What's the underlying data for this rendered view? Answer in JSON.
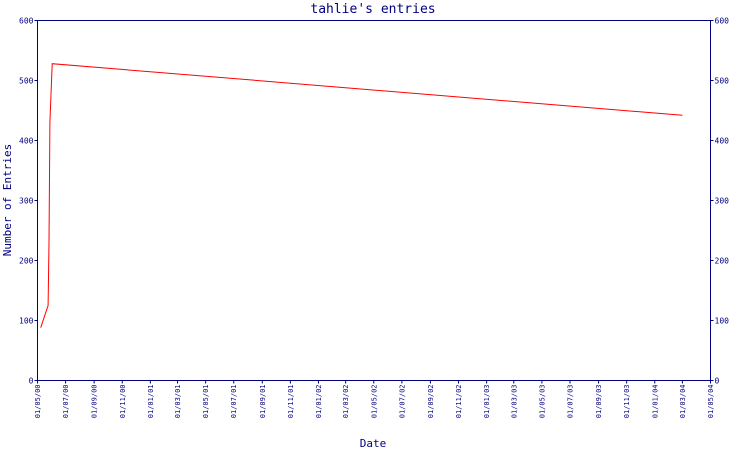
{
  "chart_data": {
    "type": "line",
    "title": "tahlie's entries",
    "xlabel": "Date",
    "ylabel": "Number of Entries",
    "ylim": [
      0,
      600
    ],
    "y_ticks": [
      "0",
      "100",
      "200",
      "300",
      "400",
      "500",
      "600"
    ],
    "x_ticks": [
      "01/05/00",
      "01/07/00",
      "01/09/00",
      "01/11/00",
      "01/01/01",
      "01/03/01",
      "01/05/01",
      "01/07/01",
      "01/09/01",
      "01/11/01",
      "01/01/02",
      "01/03/02",
      "01/05/02",
      "01/07/02",
      "01/09/02",
      "01/11/02",
      "01/01/03",
      "01/03/03",
      "01/05/03",
      "01/07/03",
      "01/09/03",
      "01/11/03",
      "01/01/04",
      "01/03/04",
      "01/05/04"
    ],
    "grid": false,
    "right_axis": true,
    "series": [
      {
        "color": "#ff0000",
        "points": [
          {
            "x": "2000-05-08",
            "y": 88
          },
          {
            "x": "2000-05-24",
            "y": 125
          },
          {
            "x": "2000-05-26",
            "y": 230
          },
          {
            "x": "2000-05-28",
            "y": 430
          },
          {
            "x": "2000-06-02",
            "y": 528
          },
          {
            "x": "2004-03-01",
            "y": 442
          }
        ]
      }
    ]
  }
}
